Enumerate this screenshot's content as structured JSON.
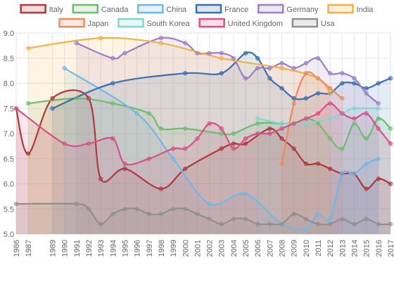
{
  "chart_data": {
    "type": "line",
    "x": [
      1986,
      1987,
      1989,
      1990,
      1991,
      1992,
      1993,
      1994,
      1995,
      1996,
      1997,
      1998,
      1999,
      2000,
      2001,
      2002,
      2003,
      2004,
      2005,
      2006,
      2007,
      2008,
      2009,
      2010,
      2011,
      2012,
      2013,
      2014,
      2015,
      2016,
      2017
    ],
    "xlim": [
      1986,
      2017
    ],
    "ylim": [
      5.0,
      9.0
    ],
    "yticks": [
      "5.0",
      "5.5",
      "6.0",
      "6.5",
      "7.0",
      "7.5",
      "8.0",
      "8.5",
      "9.0"
    ],
    "grid": true,
    "legend_position": "top",
    "area_fill": true,
    "series": [
      {
        "name": "Italy",
        "color": "#b0383c",
        "points": [
          [
            1986,
            7.5
          ],
          [
            1987,
            6.6
          ],
          [
            1989,
            7.7
          ],
          [
            1992,
            7.7
          ],
          [
            1993,
            6.1
          ],
          [
            1995,
            6.3
          ],
          [
            1998,
            5.9
          ],
          [
            2000,
            6.3
          ],
          [
            2003,
            6.7
          ],
          [
            2004,
            6.8
          ],
          [
            2005,
            6.8
          ],
          [
            2007,
            7.1
          ],
          [
            2008,
            6.9
          ],
          [
            2009,
            6.7
          ],
          [
            2010,
            6.4
          ],
          [
            2011,
            6.4
          ],
          [
            2012,
            6.3
          ],
          [
            2013,
            6.2
          ],
          [
            2014,
            6.2
          ],
          [
            2015,
            5.9
          ],
          [
            2016,
            6.1
          ],
          [
            2017,
            6.0
          ]
        ]
      },
      {
        "name": "Canada",
        "color": "#6dbd6d",
        "points": [
          [
            1987,
            7.6
          ],
          [
            1991,
            7.7
          ],
          [
            1994,
            7.6
          ],
          [
            1997,
            7.4
          ],
          [
            1998,
            7.1
          ],
          [
            2000,
            7.1
          ],
          [
            2003,
            7.0
          ],
          [
            2004,
            7.0
          ],
          [
            2006,
            7.2
          ],
          [
            2008,
            7.2
          ],
          [
            2009,
            7.2
          ],
          [
            2010,
            7.3
          ],
          [
            2011,
            7.2
          ],
          [
            2012,
            6.9
          ],
          [
            2013,
            6.7
          ],
          [
            2014,
            7.2
          ],
          [
            2015,
            6.9
          ],
          [
            2016,
            7.3
          ],
          [
            2017,
            7.1
          ]
        ]
      },
      {
        "name": "China",
        "color": "#6fb8e8",
        "points": [
          [
            1990,
            8.3
          ],
          [
            1996,
            7.4
          ],
          [
            1999,
            6.5
          ],
          [
            2002,
            5.6
          ],
          [
            2005,
            5.8
          ],
          [
            2008,
            5.2
          ],
          [
            2010,
            5.1
          ],
          [
            2011,
            5.4
          ],
          [
            2012,
            5.3
          ],
          [
            2013,
            6.2
          ],
          [
            2014,
            6.2
          ],
          [
            2015,
            6.4
          ],
          [
            2016,
            6.5
          ]
        ]
      },
      {
        "name": "France",
        "color": "#3a6fb0",
        "points": [
          [
            1989,
            7.5
          ],
          [
            1994,
            8.0
          ],
          [
            2000,
            8.2
          ],
          [
            2003,
            8.2
          ],
          [
            2005,
            8.6
          ],
          [
            2006,
            8.5
          ],
          [
            2007,
            8.1
          ],
          [
            2008,
            7.9
          ],
          [
            2009,
            7.7
          ],
          [
            2010,
            7.7
          ],
          [
            2011,
            7.8
          ],
          [
            2012,
            7.8
          ],
          [
            2013,
            8.0
          ],
          [
            2014,
            8.0
          ],
          [
            2015,
            7.9
          ],
          [
            2016,
            8.0
          ],
          [
            2017,
            8.1
          ]
        ]
      },
      {
        "name": "Germany",
        "color": "#9b7ec8",
        "points": [
          [
            1991,
            8.8
          ],
          [
            1994,
            8.5
          ],
          [
            1995,
            8.6
          ],
          [
            1998,
            8.9
          ],
          [
            2000,
            8.8
          ],
          [
            2001,
            8.6
          ],
          [
            2002,
            8.6
          ],
          [
            2003,
            8.6
          ],
          [
            2004,
            8.5
          ],
          [
            2005,
            8.1
          ],
          [
            2006,
            8.3
          ],
          [
            2007,
            8.3
          ],
          [
            2008,
            8.4
          ],
          [
            2009,
            8.3
          ],
          [
            2010,
            8.4
          ],
          [
            2011,
            8.5
          ],
          [
            2012,
            8.2
          ],
          [
            2013,
            8.2
          ],
          [
            2014,
            8.1
          ],
          [
            2015,
            7.8
          ],
          [
            2016,
            7.6
          ]
        ]
      },
      {
        "name": "India",
        "color": "#f5b041",
        "points": [
          [
            1987,
            8.7
          ],
          [
            1993,
            8.9
          ],
          [
            1998,
            8.8
          ],
          [
            2003,
            8.5
          ],
          [
            2008,
            8.3
          ],
          [
            2011,
            8.1
          ],
          [
            2012,
            7.8
          ]
        ]
      },
      {
        "name": "Japan",
        "color": "#f08a5d",
        "points": [
          [
            2008,
            6.4
          ],
          [
            2009,
            7.6
          ],
          [
            2010,
            8.2
          ],
          [
            2011,
            8.1
          ],
          [
            2012,
            7.9
          ],
          [
            2013,
            7.7
          ]
        ]
      },
      {
        "name": "South Korea",
        "color": "#7fd8cf",
        "points": [
          [
            2006,
            7.3
          ],
          [
            2008,
            7.2
          ],
          [
            2010,
            7.2
          ],
          [
            2012,
            7.3
          ],
          [
            2013,
            7.4
          ],
          [
            2014,
            7.5
          ],
          [
            2016,
            7.5
          ]
        ]
      },
      {
        "name": "United Kingdom",
        "color": "#d94f8a",
        "points": [
          [
            1986,
            7.5
          ],
          [
            1990,
            6.8
          ],
          [
            1992,
            6.8
          ],
          [
            1994,
            6.9
          ],
          [
            1995,
            6.4
          ],
          [
            1997,
            6.5
          ],
          [
            1999,
            6.7
          ],
          [
            2000,
            6.7
          ],
          [
            2001,
            6.9
          ],
          [
            2002,
            7.2
          ],
          [
            2003,
            7.1
          ],
          [
            2004,
            6.7
          ],
          [
            2005,
            6.9
          ],
          [
            2006,
            7.0
          ],
          [
            2007,
            7.0
          ],
          [
            2008,
            7.1
          ],
          [
            2009,
            7.2
          ],
          [
            2010,
            7.3
          ],
          [
            2011,
            7.4
          ],
          [
            2012,
            7.6
          ],
          [
            2013,
            7.4
          ],
          [
            2014,
            7.3
          ],
          [
            2015,
            7.4
          ],
          [
            2016,
            7.1
          ],
          [
            2017,
            6.8
          ]
        ]
      },
      {
        "name": "Usa",
        "color": "#8f8f8f",
        "points": [
          [
            1986,
            5.6
          ],
          [
            1991,
            5.6
          ],
          [
            1992,
            5.5
          ],
          [
            1993,
            5.2
          ],
          [
            1994,
            5.4
          ],
          [
            1995,
            5.5
          ],
          [
            1996,
            5.5
          ],
          [
            1997,
            5.4
          ],
          [
            1998,
            5.4
          ],
          [
            1999,
            5.5
          ],
          [
            2000,
            5.5
          ],
          [
            2001,
            5.4
          ],
          [
            2002,
            5.3
          ],
          [
            2003,
            5.2
          ],
          [
            2004,
            5.3
          ],
          [
            2005,
            5.3
          ],
          [
            2006,
            5.2
          ],
          [
            2007,
            5.2
          ],
          [
            2008,
            5.2
          ],
          [
            2009,
            5.4
          ],
          [
            2010,
            5.3
          ],
          [
            2011,
            5.2
          ],
          [
            2012,
            5.2
          ],
          [
            2013,
            5.3
          ],
          [
            2014,
            5.2
          ],
          [
            2015,
            5.3
          ],
          [
            2016,
            5.2
          ],
          [
            2017,
            5.2
          ]
        ]
      }
    ]
  }
}
